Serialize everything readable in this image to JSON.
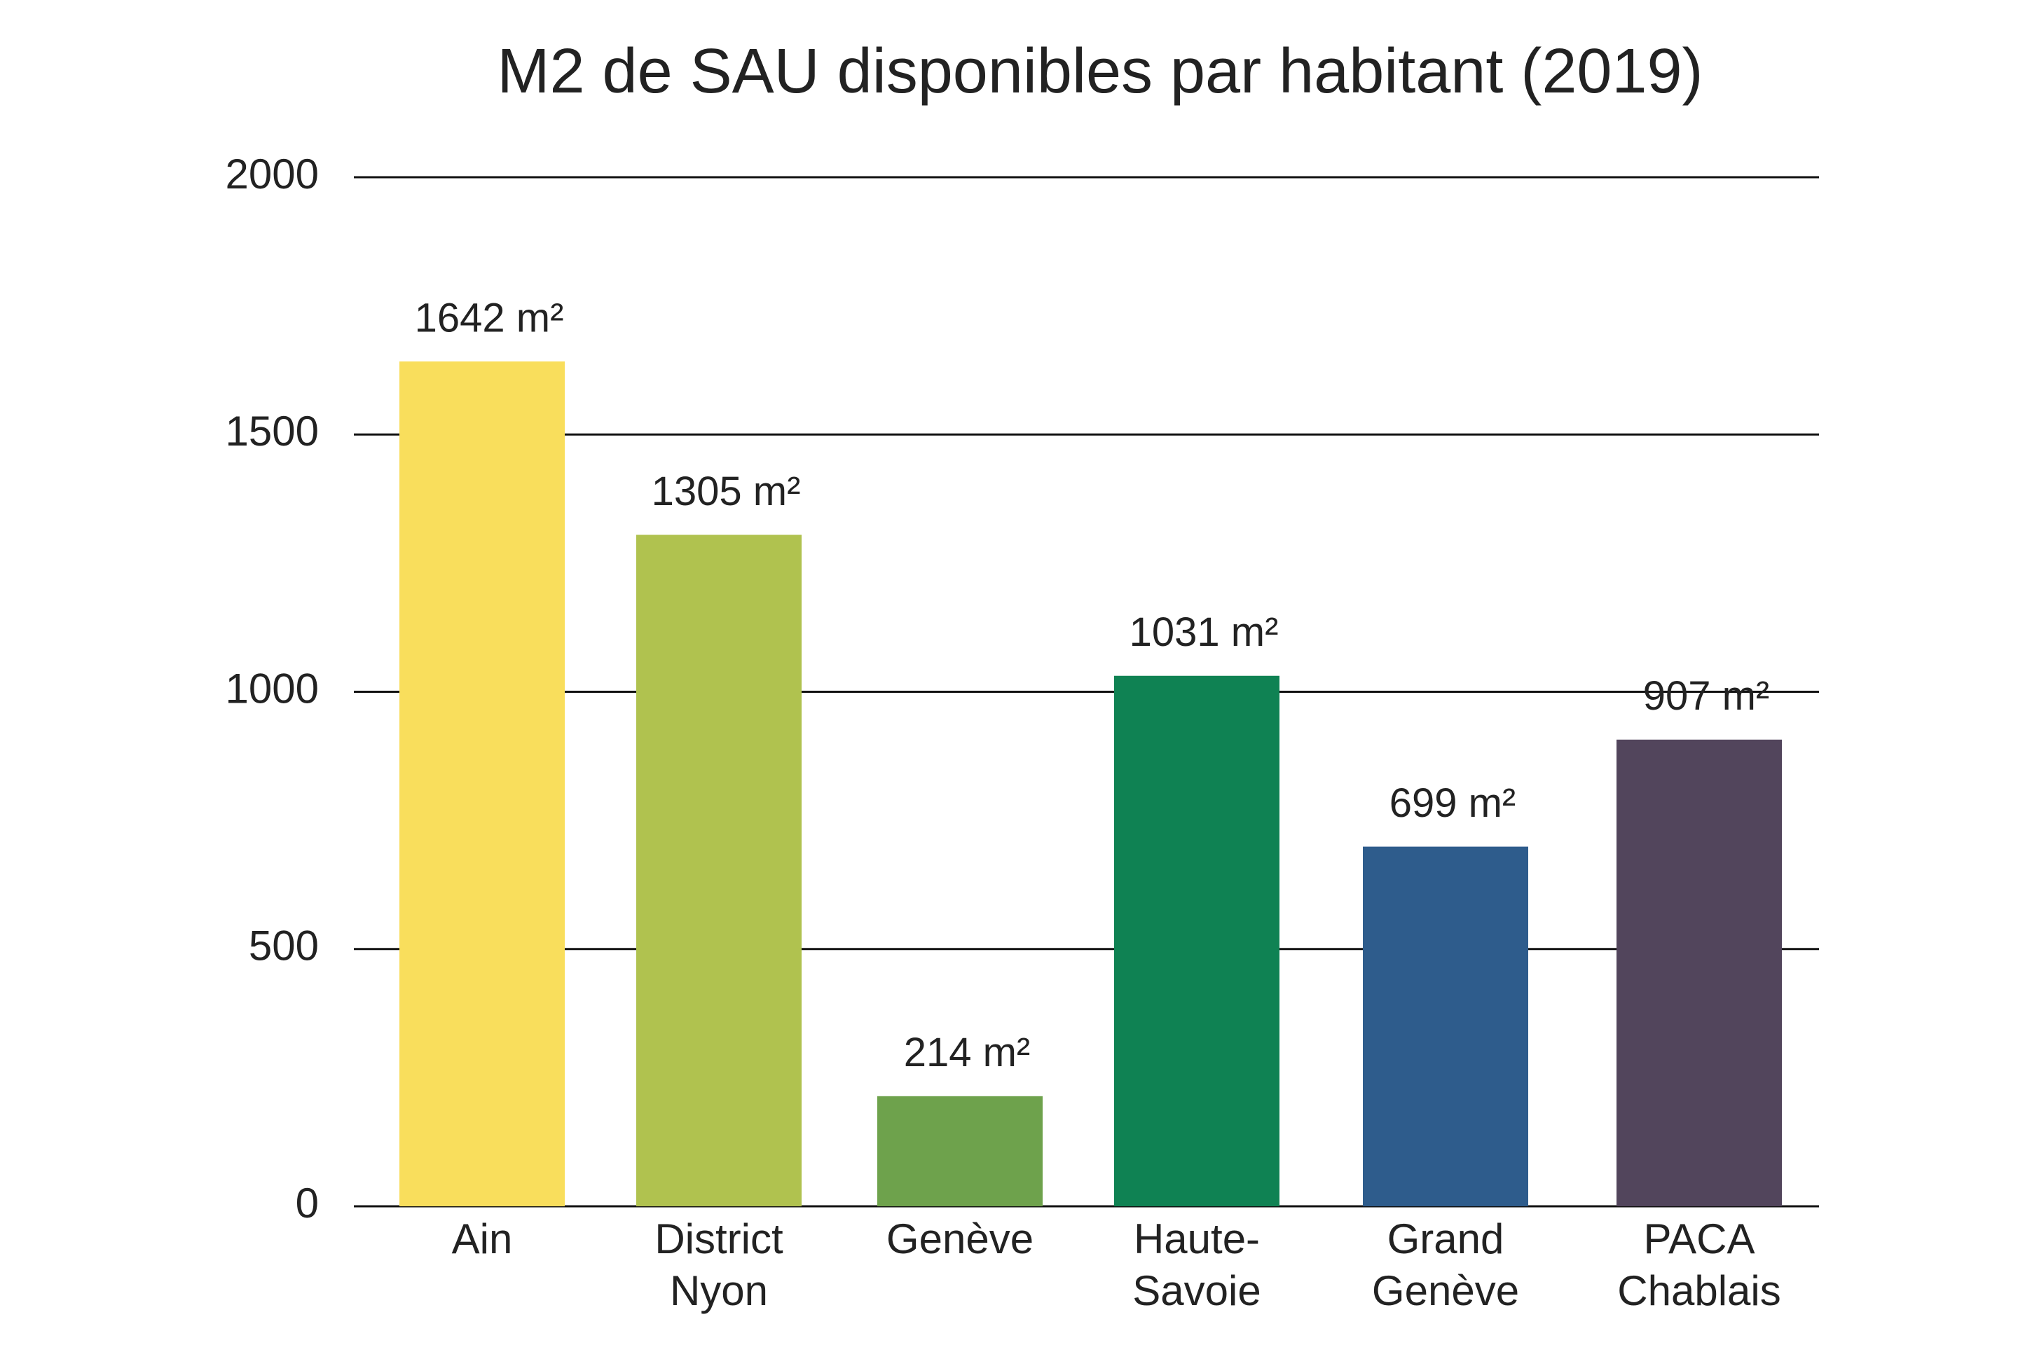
{
  "chart_data": {
    "type": "bar",
    "title": "M2 de SAU disponibles par habitant (2019)",
    "categories": [
      "Ain",
      "District\nNyon",
      "Genève",
      "Haute-\nSavoie",
      "Grand\nGenève",
      "PACA\nChablais"
    ],
    "values": [
      1642,
      1305,
      214,
      1031,
      699,
      907
    ],
    "value_labels": [
      "1642 m²",
      "1305 m²",
      "214 m²",
      "1031 m²",
      "699 m²",
      "907 m²"
    ],
    "colors": [
      "#f9de5c",
      "#b0c24f",
      "#6ea24c",
      "#0f8253",
      "#2e5c8c",
      "#52455c"
    ],
    "ylim": [
      0,
      2000
    ],
    "yticks": [
      0,
      500,
      1000,
      1500,
      2000
    ],
    "grid": true
  }
}
